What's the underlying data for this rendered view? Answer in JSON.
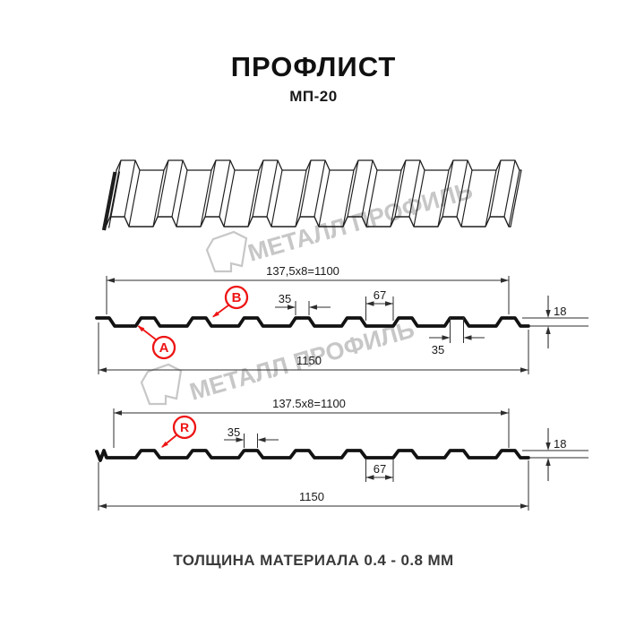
{
  "page": {
    "title": "ПРОФЛИСТ",
    "subtitle": "МП-20",
    "footer_note": "ТОЛЩИНА МАТЕРИАЛА 0.4 - 0.8 ММ"
  },
  "watermark": {
    "brand_text": "МЕТАЛЛ ПРОФИЛЬ"
  },
  "colors": {
    "line": "#1e1e1e",
    "dim": "#2e2e2e",
    "accent_red": "#ee1414",
    "watermark_gray": "#c7c7c7"
  },
  "section_top": {
    "module_dim": "137,5x8=1100",
    "overall_dim": "1150",
    "crest_top_dim": "35",
    "valley_dim": "67",
    "height_dim": "18",
    "crest_bottom_dim": "35",
    "label_a": "А",
    "label_b": "В"
  },
  "section_bottom": {
    "module_dim": "137.5x8=1100",
    "overall_dim": "1150",
    "crest_top_dim": "35",
    "valley_dim": "67",
    "height_dim": "18",
    "label_r": "R"
  }
}
